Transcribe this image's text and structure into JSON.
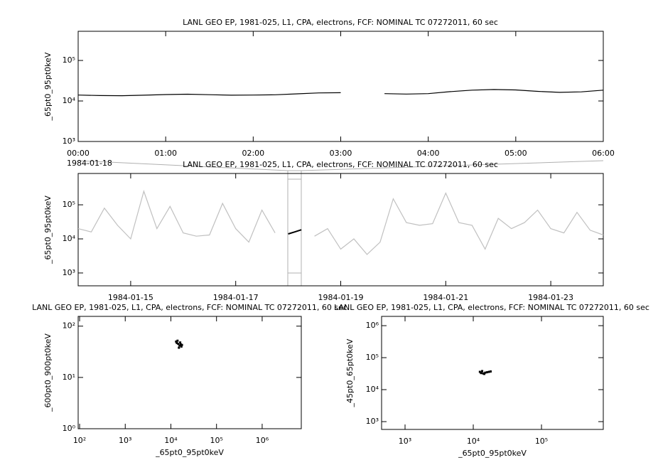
{
  "chart_data": [
    {
      "type": "line",
      "title": "LANL GEO EP, 1981-025, L1, CPA, electrons, FCF: NOMINAL TC 07272011, 60 sec",
      "ylabel": "_65pt0_95pt0keV",
      "date_label": "1984-01-18",
      "x": [
        0,
        0.25,
        0.5,
        0.75,
        1,
        1.25,
        1.5,
        1.75,
        2,
        2.25,
        2.5,
        2.75,
        3,
        3.25,
        3.5,
        3.75,
        4,
        4.25,
        4.5,
        4.75,
        5,
        5.25,
        5.5,
        5.75,
        6
      ],
      "values": [
        14000,
        13600,
        13500,
        13900,
        14400,
        14700,
        14300,
        13900,
        14000,
        14200,
        15000,
        15800,
        16000,
        null,
        15200,
        14800,
        15200,
        17000,
        18500,
        19200,
        18700,
        17300,
        16300,
        16800,
        18500
      ],
      "color": "#000000",
      "xlim": [
        0,
        6
      ],
      "xticks": [
        {
          "value": 0,
          "label": "00:00"
        },
        {
          "value": 1,
          "label": "01:00"
        },
        {
          "value": 2,
          "label": "02:00"
        },
        {
          "value": 3,
          "label": "03:00"
        },
        {
          "value": 4,
          "label": "04:00"
        },
        {
          "value": 5,
          "label": "05:00"
        },
        {
          "value": 6,
          "label": "06:00"
        }
      ],
      "ylim": [
        1000,
        525000
      ],
      "yticks": [
        {
          "value": 1000,
          "label": "10³"
        },
        {
          "value": 10000,
          "label": "10⁴"
        },
        {
          "value": 100000,
          "label": "10⁵"
        }
      ],
      "ylog": true
    },
    {
      "type": "line",
      "title": "LANL GEO EP, 1981-025, L1, CPA, electrons, FCF: NOMINAL TC 07272011, 60 sec",
      "ylabel": "_65pt0_95pt0keV",
      "xtime": true,
      "x": [
        "1984-01-14 00:00",
        "1984-01-14 06:00",
        "1984-01-14 12:00",
        "1984-01-14 18:00",
        "1984-01-15 00:00",
        "1984-01-15 06:00",
        "1984-01-15 12:00",
        "1984-01-15 18:00",
        "1984-01-16 00:00",
        "1984-01-16 06:00",
        "1984-01-16 12:00",
        "1984-01-16 18:00",
        "1984-01-17 00:00",
        "1984-01-17 06:00",
        "1984-01-17 12:00",
        "1984-01-17 18:00",
        "1984-01-18 00:00",
        "1984-01-18 06:00",
        "1984-01-18 12:00",
        "1984-01-18 18:00",
        "1984-01-19 00:00",
        "1984-01-19 06:00",
        "1984-01-19 12:00",
        "1984-01-19 18:00",
        "1984-01-20 00:00",
        "1984-01-20 06:00",
        "1984-01-20 12:00",
        "1984-01-20 18:00",
        "1984-01-21 00:00",
        "1984-01-21 06:00",
        "1984-01-21 12:00",
        "1984-01-21 18:00",
        "1984-01-22 00:00",
        "1984-01-22 06:00",
        "1984-01-22 12:00",
        "1984-01-22 18:00",
        "1984-01-23 00:00",
        "1984-01-23 06:00",
        "1984-01-23 12:00",
        "1984-01-23 18:00",
        "1984-01-24 00:00"
      ],
      "values": [
        20000,
        16000,
        80000,
        25000,
        10000,
        250000,
        20000,
        90000,
        15000,
        12000,
        13000,
        110000,
        20000,
        8000,
        70000,
        15000,
        null,
        null,
        12000,
        20000,
        5000,
        10000,
        3500,
        8000,
        150000,
        30000,
        25000,
        28000,
        220000,
        30000,
        25000,
        5000,
        40000,
        20000,
        30000,
        70000,
        20000,
        15000,
        60000,
        18000,
        13000
      ],
      "color": "#c0c0c0",
      "highlight": {
        "x": [
          "1984-01-18 00:00",
          "1984-01-18 03:00",
          "1984-01-18 06:00"
        ],
        "values": [
          14000,
          16000,
          18500
        ],
        "color": "#000000"
      },
      "xlim": [
        "1984-01-14 00:00",
        "1984-01-24 00:00"
      ],
      "xticks": [
        {
          "value": "1984-01-15 00:00",
          "label": "1984-01-15"
        },
        {
          "value": "1984-01-17 00:00",
          "label": "1984-01-17"
        },
        {
          "value": "1984-01-19 00:00",
          "label": "1984-01-19"
        },
        {
          "value": "1984-01-21 00:00",
          "label": "1984-01-21"
        },
        {
          "value": "1984-01-23 00:00",
          "label": "1984-01-23"
        }
      ],
      "ylim": [
        420,
        830000
      ],
      "yticks": [
        {
          "value": 1000,
          "label": "10³"
        },
        {
          "value": 10000,
          "label": "10⁴"
        },
        {
          "value": 100000,
          "label": "10⁵"
        }
      ],
      "ylog": true
    },
    {
      "type": "scatter",
      "title": "LANL GEO EP, 1981-025, L1, CPA, electrons, FCF: NOMINAL TC 07272011, 60 sec",
      "xlabel": "_65pt0_95pt0keV",
      "ylabel": "_600pt0_900pt0keV",
      "x": [
        13000,
        14500,
        15500,
        16000,
        17000,
        14000,
        15000,
        16500,
        13500,
        17500
      ],
      "values": [
        50,
        45,
        42,
        48,
        40,
        52,
        38,
        44,
        47,
        43
      ],
      "color": "#000000",
      "xlim": [
        93,
        7200000
      ],
      "xticks": [
        {
          "value": 100,
          "label": "10²"
        },
        {
          "value": 1000,
          "label": "10³"
        },
        {
          "value": 10000,
          "label": "10⁴"
        },
        {
          "value": 100000,
          "label": "10⁵"
        },
        {
          "value": 1000000,
          "label": "10⁶"
        }
      ],
      "ylim": [
        1,
        155
      ],
      "yticks": [
        {
          "value": 1,
          "label": "10⁰"
        },
        {
          "value": 10,
          "label": "10¹"
        },
        {
          "value": 100,
          "label": "10²"
        }
      ],
      "xlog": true,
      "ylog": true
    },
    {
      "type": "scatter",
      "title": "LANL GEO EP, 1981-025, L1, CPA, electrons, FCF: NOMINAL TC 07272011, 60 sec",
      "xlabel": "_65pt0_95pt0keV",
      "ylabel": "_45pt0_65pt0keV",
      "x": [
        12500,
        13000,
        14000,
        15000,
        16000,
        17000,
        18000,
        13500,
        14500
      ],
      "values": [
        36000,
        33000,
        32000,
        34000,
        35000,
        36000,
        37000,
        38000,
        31000
      ],
      "color": "#000000",
      "xlim": [
        453,
        805000
      ],
      "xticks": [
        {
          "value": 1000,
          "label": "10³"
        },
        {
          "value": 10000,
          "label": "10⁴"
        },
        {
          "value": 100000,
          "label": "10⁵"
        }
      ],
      "ylim": [
        570,
        1950000
      ],
      "yticks": [
        {
          "value": 1000,
          "label": "10³"
        },
        {
          "value": 10000,
          "label": "10⁴"
        },
        {
          "value": 100000,
          "label": "10⁵"
        },
        {
          "value": 1000000,
          "label": "10⁶"
        }
      ],
      "xlog": true,
      "ylog": true
    }
  ]
}
